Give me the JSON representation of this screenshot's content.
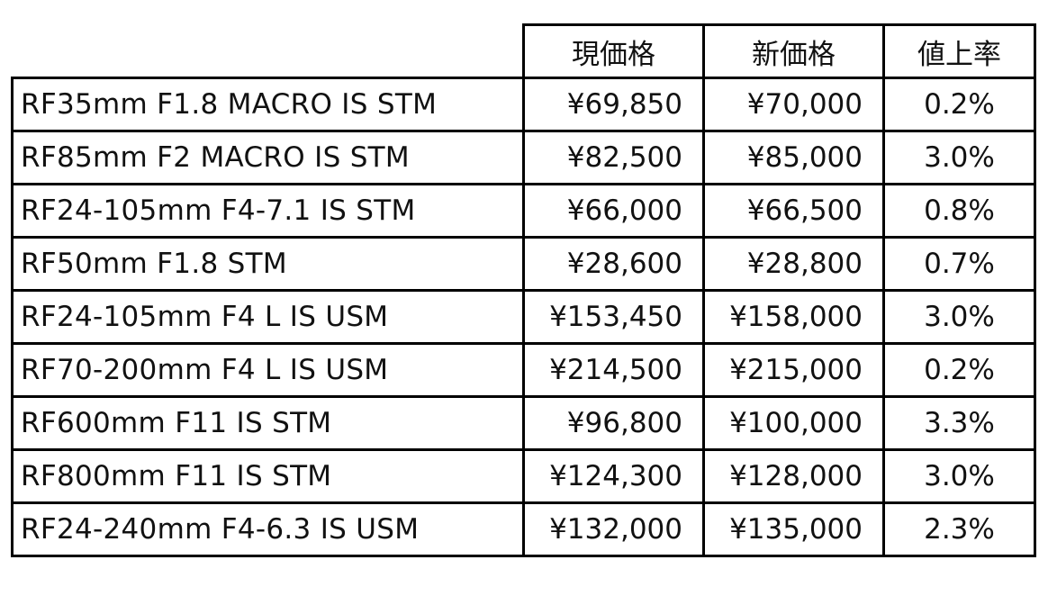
{
  "headers": [
    "",
    "現価格",
    "新価格",
    "値上率"
  ],
  "rows": [
    {
      "name": "RF35mm F1.8 MACRO IS STM",
      "current": "¥69,850",
      "new": "¥70,000",
      "rate": "0.2%"
    },
    {
      "name": "RF85mm F2 MACRO IS STM",
      "current": "¥82,500",
      "new": "¥85,000",
      "rate": "3.0%"
    },
    {
      "name": "RF24-105mm F4-7.1 IS STM",
      "current": "¥66,000",
      "new": "¥66,500",
      "rate": "0.8%"
    },
    {
      "name": "RF50mm F1.8 STM",
      "current": "¥28,600",
      "new": "¥28,800",
      "rate": "0.7%"
    },
    {
      "name": "RF24-105mm F4 L IS USM",
      "current": "¥153,450",
      "new": "¥158,000",
      "rate": "3.0%"
    },
    {
      "name": "RF70-200mm F4 L IS USM",
      "current": "¥214,500",
      "new": "¥215,000",
      "rate": "0.2%"
    },
    {
      "name": "RF600mm F11 IS STM",
      "current": "¥96,800",
      "new": "¥100,000",
      "rate": "3.3%"
    },
    {
      "name": "RF800mm F11 IS STM",
      "current": "¥124,300",
      "new": "¥128,000",
      "rate": "3.0%"
    },
    {
      "name": "RF24-240mm F4-6.3 IS USM",
      "current": "¥132,000",
      "new": "¥135,000",
      "rate": "2.3%"
    }
  ]
}
